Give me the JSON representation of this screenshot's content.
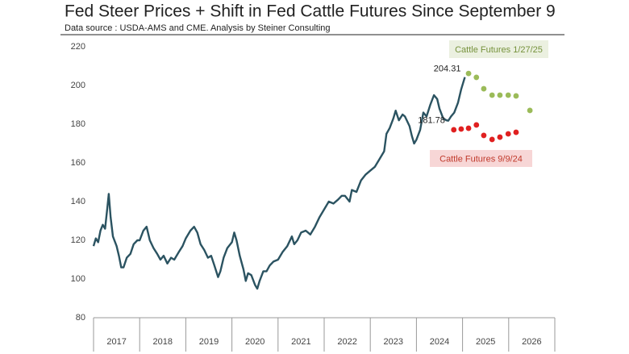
{
  "chart_data": {
    "type": "line",
    "title": "Fed Steer Prices + Shift in Fed Cattle Futures Since September 9",
    "subtitle": "Data source : USDA-AMS and CME.  Analysis by Steiner Consulting",
    "xlim": [
      2017,
      2027
    ],
    "xticks": [
      {
        "value": 2017.5,
        "label": "2017"
      },
      {
        "value": 2018.5,
        "label": "2018"
      },
      {
        "value": 2019.5,
        "label": "2019"
      },
      {
        "value": 2020.5,
        "label": "2020"
      },
      {
        "value": 2021.5,
        "label": "2021"
      },
      {
        "value": 2022.5,
        "label": "2022"
      },
      {
        "value": 2023.5,
        "label": "2023"
      },
      {
        "value": 2024.5,
        "label": "2024"
      },
      {
        "value": 2025.5,
        "label": "2025"
      },
      {
        "value": 2026.5,
        "label": "2026"
      }
    ],
    "ylim": [
      80,
      220
    ],
    "yticks": [
      80,
      100,
      120,
      140,
      160,
      180,
      200,
      220
    ],
    "series": [
      {
        "mark": "line",
        "color": "#2b5361",
        "x": [
          2017.0,
          2017.05,
          2017.1,
          2017.15,
          2017.2,
          2017.25,
          2017.3,
          2017.33,
          2017.37,
          2017.42,
          2017.5,
          2017.55,
          2017.6,
          2017.65,
          2017.72,
          2017.8,
          2017.87,
          2017.95,
          2018.0,
          2018.08,
          2018.15,
          2018.22,
          2018.3,
          2018.38,
          2018.45,
          2018.52,
          2018.6,
          2018.68,
          2018.75,
          2018.85,
          2018.93,
          2019.0,
          2019.1,
          2019.18,
          2019.25,
          2019.32,
          2019.4,
          2019.48,
          2019.55,
          2019.62,
          2019.7,
          2019.75,
          2019.82,
          2019.9,
          2020.0,
          2020.05,
          2020.1,
          2020.17,
          2020.25,
          2020.3,
          2020.35,
          2020.42,
          2020.5,
          2020.55,
          2020.6,
          2020.68,
          2020.75,
          2020.82,
          2020.9,
          2021.0,
          2021.1,
          2021.2,
          2021.3,
          2021.35,
          2021.42,
          2021.5,
          2021.6,
          2021.7,
          2021.8,
          2021.9,
          2022.0,
          2022.1,
          2022.2,
          2022.3,
          2022.38,
          2022.45,
          2022.55,
          2022.6,
          2022.7,
          2022.8,
          2022.9,
          2023.0,
          2023.1,
          2023.2,
          2023.3,
          2023.35,
          2023.42,
          2023.5,
          2023.55,
          2023.62,
          2023.7,
          2023.75,
          2023.85,
          2023.9,
          2023.95,
          2024.0,
          2024.08,
          2024.15,
          2024.22,
          2024.3,
          2024.38,
          2024.45,
          2024.5,
          2024.58,
          2024.65,
          2024.69,
          2024.75,
          2024.82,
          2024.9,
          2024.97,
          2025.05
        ],
        "values": [
          117,
          121,
          119,
          125,
          128,
          126,
          137,
          144,
          132,
          122,
          117,
          112,
          106,
          106,
          111,
          113,
          118,
          120,
          120,
          125,
          127,
          120,
          116,
          113,
          110,
          112,
          108,
          111,
          110,
          114,
          117,
          121,
          125,
          127,
          124,
          118,
          115,
          111,
          112,
          107,
          101,
          104,
          111,
          116,
          119,
          124,
          120,
          112,
          105,
          99,
          103,
          102,
          97,
          95,
          99,
          104,
          104,
          107,
          109,
          110,
          114,
          117,
          122,
          118,
          120,
          124,
          125,
          123,
          127,
          132,
          136,
          140,
          139,
          141,
          143,
          143,
          140,
          146,
          145,
          151,
          154,
          156,
          158,
          162,
          166,
          175,
          178,
          183,
          187,
          182,
          185,
          184,
          179,
          174,
          170,
          172,
          177,
          186,
          184,
          190,
          195,
          193,
          188,
          183,
          182,
          181.78,
          184,
          186,
          191,
          198,
          204.31
        ]
      },
      {
        "mark": "dot",
        "name": "Cattle Futures 1/27/25",
        "color": "#9bbb59",
        "x": [
          2025.13,
          2025.3,
          2025.46,
          2025.64,
          2025.81,
          2025.99,
          2026.16,
          2026.46
        ],
        "values": [
          206.2,
          204.2,
          198.3,
          195,
          195,
          195,
          194.6,
          187.1
        ]
      },
      {
        "mark": "dot",
        "name": "Cattle Futures 9/9/24",
        "color": "#e02020",
        "x": [
          2024.81,
          2024.97,
          2025.13,
          2025.3,
          2025.46,
          2025.64,
          2025.81,
          2025.99,
          2026.16
        ],
        "values": [
          177.1,
          177.5,
          177.9,
          179.6,
          174.2,
          172.1,
          173.3,
          175,
          175.8
        ]
      }
    ],
    "annotations": [
      {
        "x": 2025.05,
        "value": 204.31
      },
      {
        "x": 2024.69,
        "value": 181.78
      }
    ]
  }
}
